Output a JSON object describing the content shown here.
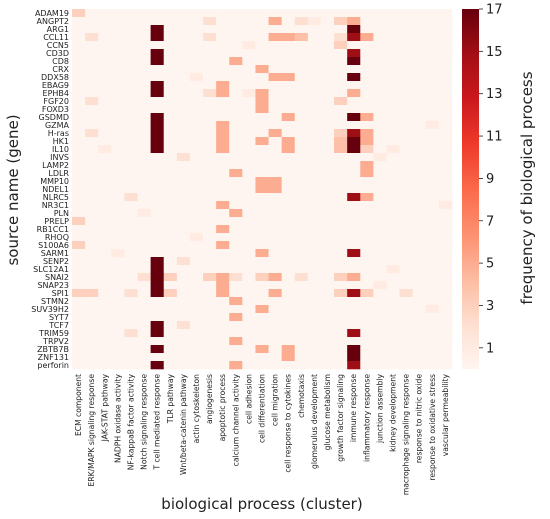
{
  "chart_data": {
    "type": "heatmap",
    "xlabel": "biological process (cluster)",
    "ylabel": "source name (gene)",
    "colorbar_label": "frequency of biological process",
    "colorbar_ticks": [
      1,
      3,
      5,
      7,
      9,
      11,
      13,
      15,
      17
    ],
    "value_range": [
      0,
      17
    ],
    "colors": {
      "low": "#fdf3ee",
      "high": "#67000d"
    },
    "x_categories": [
      "ECM component",
      "ERK/MAPK signaling response",
      "JAK-STAT pathway",
      "NADPH oxidase activity",
      "NF-kappaB factor activity",
      "Notch signaling response",
      "T cell mediated response",
      "TLR pathway",
      "Wnt/beta-catenin pathway",
      "actin cytoskeleton",
      "angiogenesis",
      "apoptotic process",
      "calcium channel activity",
      "cell adhesion",
      "cell differentiation",
      "cell migration",
      "cell response to cytokines",
      "chemotaxis",
      "glomerulus development",
      "glucose metabolism",
      "growth factor signaling",
      "immune response",
      "inflammatory response",
      "junction assembly",
      "kidney development",
      "macrophage signaling response",
      "response to nitric oxide",
      "response to oxidative stress",
      "vascular permeability"
    ],
    "y_categories": [
      "ADAM19",
      "ANGPT2",
      "ARG1",
      "CCL11",
      "CCN5",
      "CD3D",
      "CD8",
      "CRX",
      "DDX58",
      "EBAG9",
      "EPHB4",
      "FGF20",
      "FOXD3",
      "GSDMD",
      "GZMA",
      "H-ras",
      "HK1",
      "IL10",
      "INVS",
      "LAMP2",
      "LDLR",
      "MMP10",
      "NDEL1",
      "NLRC5",
      "NR3C1",
      "PLN",
      "PRELP",
      "RB1CC1",
      "RHOQ",
      "S100A6",
      "SARM1",
      "SENP2",
      "SLC12A1",
      "SNAI2",
      "SNAP23",
      "SPI1",
      "STMN2",
      "SUV39H2",
      "SYT7",
      "TCF7",
      "TRIM59",
      "TRPV2",
      "ZBTB7B",
      "ZNF131",
      "perforin"
    ],
    "values": [
      [
        3,
        0,
        0,
        0,
        0,
        0,
        0,
        0,
        0,
        0,
        0,
        0,
        0,
        0,
        0,
        0,
        0,
        0,
        0,
        0,
        0,
        0,
        0,
        0,
        0,
        0,
        0,
        0,
        0
      ],
      [
        0,
        0,
        0,
        0,
        0,
        0,
        0,
        0,
        0,
        0,
        2,
        0,
        0,
        0,
        0,
        5,
        0,
        2,
        1,
        0,
        3,
        5,
        0,
        0,
        0,
        0,
        0,
        0,
        0
      ],
      [
        0,
        0,
        0,
        0,
        0,
        0,
        17,
        0,
        0,
        0,
        0,
        0,
        0,
        0,
        0,
        0,
        0,
        0,
        0,
        0,
        0,
        17,
        0,
        0,
        0,
        0,
        0,
        0,
        0
      ],
      [
        0,
        2,
        0,
        0,
        0,
        0,
        17,
        0,
        0,
        0,
        2,
        0,
        0,
        0,
        0,
        5,
        5,
        4,
        0,
        0,
        2,
        15,
        5,
        0,
        0,
        0,
        0,
        0,
        0
      ],
      [
        0,
        0,
        0,
        0,
        0,
        0,
        0,
        0,
        0,
        0,
        0,
        0,
        0,
        1,
        0,
        0,
        0,
        0,
        0,
        0,
        3,
        0,
        0,
        0,
        0,
        0,
        0,
        0,
        0
      ],
      [
        0,
        0,
        0,
        0,
        0,
        0,
        17,
        0,
        0,
        0,
        0,
        0,
        0,
        0,
        0,
        0,
        0,
        0,
        0,
        0,
        0,
        15,
        0,
        0,
        0,
        0,
        0,
        0,
        0
      ],
      [
        0,
        0,
        0,
        0,
        0,
        0,
        17,
        0,
        0,
        0,
        0,
        0,
        5,
        0,
        0,
        0,
        0,
        0,
        0,
        0,
        0,
        17,
        0,
        0,
        0,
        0,
        0,
        0,
        0
      ],
      [
        0,
        0,
        0,
        0,
        0,
        0,
        0,
        0,
        0,
        0,
        0,
        0,
        0,
        0,
        5,
        0,
        0,
        0,
        0,
        0,
        0,
        0,
        0,
        0,
        0,
        0,
        0,
        0,
        0
      ],
      [
        0,
        0,
        0,
        0,
        0,
        0,
        0,
        0,
        0,
        1,
        0,
        0,
        0,
        0,
        0,
        5,
        5,
        0,
        0,
        0,
        0,
        17,
        0,
        0,
        0,
        0,
        0,
        0,
        0
      ],
      [
        0,
        0,
        0,
        0,
        0,
        0,
        17,
        0,
        0,
        0,
        0,
        5,
        0,
        0,
        0,
        0,
        0,
        0,
        0,
        0,
        0,
        0,
        0,
        0,
        0,
        0,
        0,
        0,
        0
      ],
      [
        0,
        0,
        0,
        0,
        0,
        0,
        17,
        0,
        0,
        0,
        2,
        5,
        0,
        1,
        5,
        0,
        0,
        0,
        0,
        0,
        0,
        5,
        0,
        0,
        0,
        0,
        0,
        0,
        0
      ],
      [
        0,
        2,
        0,
        0,
        0,
        0,
        0,
        0,
        0,
        0,
        0,
        0,
        0,
        0,
        5,
        0,
        0,
        0,
        0,
        0,
        3,
        0,
        0,
        0,
        0,
        0,
        0,
        0,
        0
      ],
      [
        0,
        0,
        0,
        0,
        0,
        0,
        0,
        0,
        0,
        0,
        0,
        0,
        0,
        0,
        5,
        0,
        0,
        0,
        0,
        0,
        0,
        0,
        0,
        0,
        0,
        0,
        0,
        0,
        0
      ],
      [
        0,
        0,
        0,
        0,
        0,
        0,
        17,
        0,
        0,
        0,
        0,
        0,
        0,
        0,
        0,
        0,
        5,
        0,
        0,
        0,
        0,
        17,
        5,
        0,
        0,
        0,
        0,
        0,
        0
      ],
      [
        0,
        0,
        0,
        0,
        0,
        0,
        17,
        0,
        0,
        0,
        0,
        5,
        0,
        0,
        0,
        0,
        0,
        0,
        0,
        0,
        0,
        0,
        0,
        0,
        0,
        0,
        0,
        1,
        0
      ],
      [
        0,
        2,
        0,
        0,
        0,
        0,
        17,
        0,
        0,
        0,
        0,
        5,
        0,
        0,
        0,
        5,
        0,
        0,
        0,
        0,
        3,
        15,
        5,
        0,
        0,
        0,
        0,
        0,
        0
      ],
      [
        0,
        0,
        0,
        0,
        0,
        0,
        17,
        0,
        0,
        0,
        0,
        5,
        0,
        0,
        5,
        0,
        5,
        0,
        0,
        0,
        4,
        17,
        5,
        0,
        0,
        0,
        0,
        0,
        0
      ],
      [
        0,
        0,
        1,
        0,
        0,
        0,
        17,
        0,
        0,
        0,
        0,
        5,
        0,
        0,
        0,
        0,
        5,
        0,
        0,
        0,
        4,
        17,
        3,
        0,
        1,
        0,
        0,
        0,
        0
      ],
      [
        0,
        0,
        0,
        0,
        0,
        0,
        0,
        0,
        2,
        0,
        0,
        0,
        0,
        0,
        0,
        0,
        0,
        0,
        0,
        0,
        0,
        0,
        0,
        1,
        0,
        0,
        0,
        0,
        0
      ],
      [
        0,
        0,
        0,
        0,
        0,
        0,
        0,
        0,
        0,
        0,
        0,
        0,
        0,
        0,
        0,
        0,
        0,
        0,
        0,
        0,
        0,
        0,
        5,
        0,
        0,
        0,
        0,
        0,
        0
      ],
      [
        0,
        0,
        0,
        0,
        0,
        0,
        0,
        0,
        0,
        0,
        0,
        0,
        5,
        0,
        0,
        0,
        0,
        0,
        0,
        0,
        0,
        0,
        5,
        0,
        0,
        0,
        0,
        0,
        0
      ],
      [
        0,
        0,
        0,
        0,
        0,
        0,
        0,
        0,
        0,
        0,
        0,
        0,
        0,
        0,
        5,
        5,
        0,
        0,
        0,
        0,
        0,
        0,
        0,
        0,
        0,
        0,
        0,
        0,
        0
      ],
      [
        0,
        0,
        0,
        0,
        0,
        0,
        0,
        0,
        0,
        0,
        0,
        0,
        0,
        0,
        5,
        5,
        0,
        0,
        0,
        0,
        0,
        0,
        0,
        0,
        0,
        0,
        0,
        0,
        0
      ],
      [
        0,
        0,
        0,
        0,
        2,
        0,
        0,
        0,
        0,
        0,
        0,
        0,
        0,
        0,
        0,
        0,
        0,
        0,
        0,
        0,
        0,
        15,
        5,
        0,
        0,
        0,
        0,
        0,
        0
      ],
      [
        0,
        0,
        0,
        0,
        0,
        0,
        0,
        0,
        0,
        0,
        0,
        5,
        0,
        0,
        0,
        0,
        0,
        0,
        0,
        0,
        0,
        0,
        0,
        0,
        0,
        0,
        0,
        0,
        1
      ],
      [
        0,
        0,
        0,
        0,
        0,
        1,
        0,
        0,
        0,
        0,
        0,
        0,
        5,
        0,
        0,
        0,
        0,
        0,
        0,
        0,
        0,
        0,
        0,
        0,
        0,
        0,
        0,
        0,
        0
      ],
      [
        3,
        0,
        0,
        0,
        0,
        0,
        0,
        0,
        0,
        0,
        0,
        0,
        0,
        0,
        0,
        0,
        0,
        0,
        0,
        0,
        0,
        0,
        0,
        0,
        0,
        0,
        0,
        0,
        0
      ],
      [
        0,
        0,
        0,
        0,
        0,
        0,
        0,
        0,
        0,
        0,
        0,
        5,
        0,
        0,
        0,
        0,
        0,
        0,
        0,
        0,
        0,
        0,
        0,
        0,
        0,
        0,
        0,
        0,
        0
      ],
      [
        0,
        0,
        0,
        0,
        0,
        0,
        0,
        0,
        0,
        1,
        0,
        0,
        0,
        0,
        0,
        0,
        0,
        0,
        0,
        0,
        0,
        0,
        0,
        0,
        0,
        0,
        0,
        0,
        0
      ],
      [
        3,
        0,
        0,
        0,
        0,
        0,
        0,
        0,
        0,
        0,
        0,
        5,
        0,
        0,
        0,
        0,
        0,
        0,
        0,
        0,
        0,
        0,
        0,
        0,
        0,
        0,
        0,
        0,
        0
      ],
      [
        0,
        0,
        0,
        1,
        0,
        0,
        0,
        0,
        0,
        0,
        0,
        0,
        0,
        0,
        5,
        0,
        0,
        0,
        0,
        0,
        0,
        15,
        0,
        0,
        0,
        0,
        0,
        0,
        0
      ],
      [
        0,
        0,
        0,
        0,
        0,
        0,
        17,
        0,
        2,
        0,
        0,
        0,
        0,
        0,
        0,
        0,
        0,
        0,
        0,
        0,
        0,
        0,
        0,
        0,
        0,
        0,
        0,
        0,
        0
      ],
      [
        0,
        0,
        0,
        0,
        0,
        0,
        17,
        0,
        0,
        0,
        0,
        0,
        0,
        0,
        0,
        0,
        0,
        0,
        0,
        0,
        0,
        0,
        0,
        0,
        1,
        0,
        0,
        0,
        0
      ],
      [
        0,
        0,
        0,
        0,
        0,
        2,
        17,
        3,
        0,
        0,
        3,
        5,
        2,
        0,
        3,
        5,
        0,
        2,
        0,
        0,
        3,
        5,
        0,
        0,
        0,
        0,
        0,
        0,
        0
      ],
      [
        0,
        0,
        0,
        0,
        0,
        0,
        17,
        0,
        0,
        0,
        0,
        5,
        0,
        0,
        0,
        0,
        0,
        0,
        0,
        0,
        0,
        0,
        0,
        1,
        0,
        0,
        0,
        0,
        0
      ],
      [
        3,
        3,
        0,
        0,
        2,
        0,
        17,
        3,
        0,
        0,
        0,
        5,
        0,
        0,
        0,
        5,
        0,
        0,
        0,
        0,
        3,
        15,
        3,
        0,
        0,
        2,
        0,
        0,
        0
      ],
      [
        0,
        0,
        0,
        0,
        0,
        0,
        0,
        0,
        0,
        0,
        0,
        0,
        5,
        0,
        0,
        0,
        0,
        0,
        0,
        0,
        0,
        0,
        0,
        0,
        0,
        0,
        0,
        0,
        0
      ],
      [
        0,
        0,
        0,
        0,
        0,
        0,
        0,
        0,
        0,
        0,
        0,
        0,
        0,
        0,
        5,
        0,
        0,
        0,
        0,
        0,
        0,
        0,
        0,
        0,
        0,
        0,
        0,
        1,
        0
      ],
      [
        0,
        0,
        0,
        0,
        0,
        0,
        0,
        0,
        0,
        0,
        0,
        0,
        5,
        0,
        0,
        0,
        0,
        0,
        0,
        0,
        0,
        0,
        0,
        0,
        0,
        0,
        0,
        0,
        0
      ],
      [
        0,
        0,
        0,
        0,
        0,
        0,
        17,
        0,
        2,
        0,
        0,
        0,
        0,
        0,
        0,
        0,
        0,
        0,
        0,
        0,
        0,
        0,
        0,
        0,
        0,
        0,
        0,
        0,
        0
      ],
      [
        0,
        0,
        0,
        0,
        2,
        0,
        17,
        0,
        0,
        0,
        0,
        0,
        0,
        0,
        0,
        0,
        0,
        0,
        0,
        0,
        0,
        15,
        0,
        0,
        0,
        0,
        0,
        0,
        0
      ],
      [
        0,
        0,
        0,
        0,
        0,
        0,
        0,
        0,
        0,
        0,
        0,
        0,
        5,
        0,
        0,
        0,
        0,
        0,
        0,
        0,
        0,
        0,
        0,
        0,
        0,
        0,
        0,
        0,
        0
      ],
      [
        0,
        0,
        0,
        0,
        0,
        0,
        17,
        0,
        0,
        0,
        0,
        0,
        0,
        0,
        5,
        0,
        5,
        0,
        0,
        0,
        0,
        17,
        0,
        0,
        0,
        0,
        0,
        0,
        0
      ],
      [
        0,
        0,
        0,
        0,
        0,
        0,
        0,
        0,
        0,
        0,
        0,
        0,
        0,
        0,
        0,
        0,
        5,
        0,
        0,
        0,
        0,
        17,
        0,
        0,
        0,
        0,
        0,
        0,
        0
      ],
      [
        0,
        0,
        0,
        0,
        0,
        0,
        17,
        0,
        0,
        0,
        0,
        0,
        5,
        0,
        0,
        0,
        0,
        0,
        0,
        0,
        0,
        15,
        0,
        0,
        0,
        0,
        0,
        0,
        0
      ]
    ]
  }
}
